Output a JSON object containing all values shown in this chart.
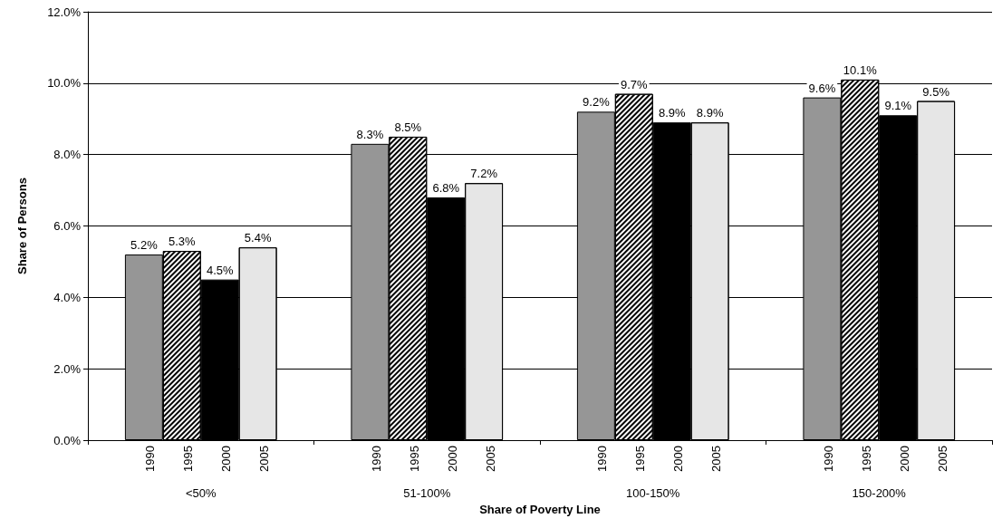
{
  "chart_data": {
    "type": "bar",
    "xlabel": "Share of Poverty Line",
    "ylabel": "Share of Persons",
    "categories": [
      "<50%",
      "51-100%",
      "100-150%",
      "150-200%"
    ],
    "series": [
      {
        "name": "1990",
        "color": "#969696",
        "values": [
          5.2,
          8.3,
          9.2,
          9.6
        ],
        "value_labels": [
          "5.2%",
          "8.3%",
          "9.2%",
          "9.6%"
        ]
      },
      {
        "name": "1995",
        "color": "#ffffff",
        "values": [
          5.3,
          8.5,
          9.7,
          10.1
        ],
        "value_labels": [
          "5.3%",
          "8.5%",
          "9.7%",
          "10.1%"
        ]
      },
      {
        "name": "2000",
        "color": "#000000",
        "values": [
          4.5,
          6.8,
          8.9,
          9.1
        ],
        "value_labels": [
          "4.5%",
          "6.8%",
          "8.9%",
          "9.1%"
        ]
      },
      {
        "name": "2005",
        "color": "#e6e6e6",
        "values": [
          5.4,
          7.2,
          8.9,
          9.5
        ],
        "value_labels": [
          "5.4%",
          "7.2%",
          "8.9%",
          "9.5%"
        ]
      }
    ],
    "ylim": [
      0,
      12
    ],
    "yticks": [
      {
        "value": 0,
        "label": "0.0%"
      },
      {
        "value": 2,
        "label": "2.0%"
      },
      {
        "value": 4,
        "label": "4.0%"
      },
      {
        "value": 6,
        "label": "6.0%"
      },
      {
        "value": 8,
        "label": "8.0%"
      },
      {
        "value": 10,
        "label": "10.0%"
      },
      {
        "value": 12,
        "label": "12.0%"
      }
    ],
    "grid": "y",
    "legend": false
  }
}
